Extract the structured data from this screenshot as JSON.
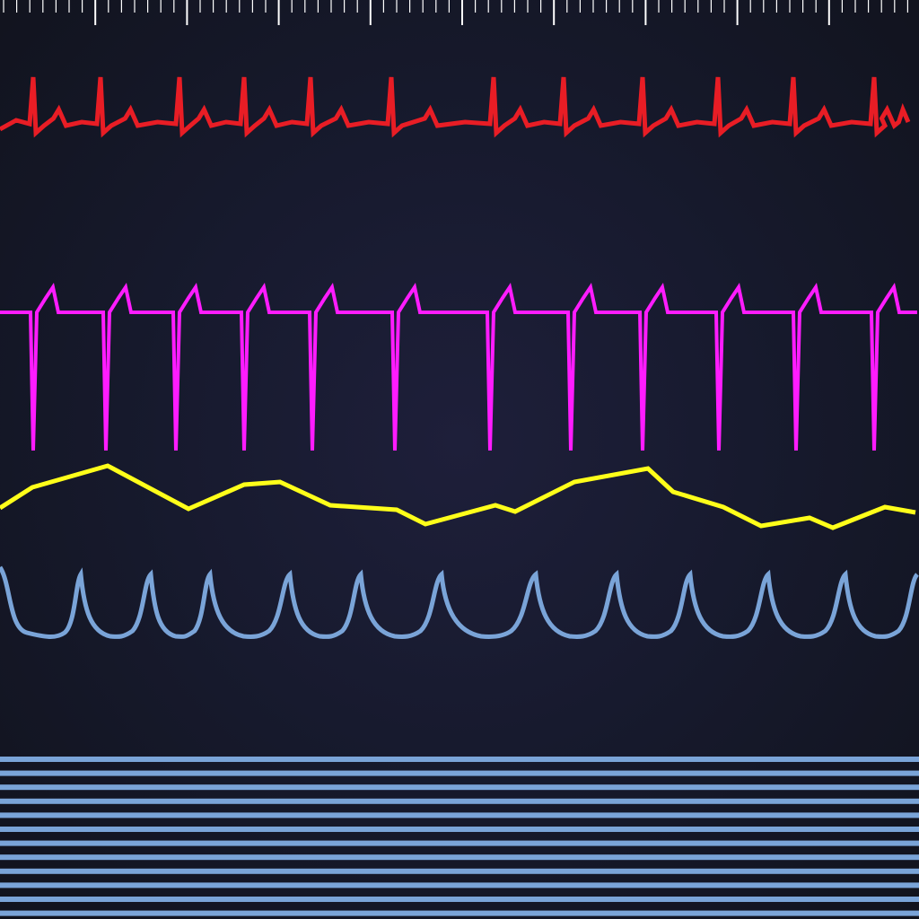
{
  "monitor": {
    "background": "#11131d",
    "ruler": {
      "color": "#ffffff",
      "tick_count": 70,
      "major_every": 7
    },
    "traces": [
      {
        "id": "ecg",
        "name": "ecg-trace",
        "color": "#e81d25",
        "stroke_width": 5
      },
      {
        "id": "pacing",
        "name": "pacing-trace",
        "color": "#ff1cff",
        "stroke_width": 4
      },
      {
        "id": "respiration",
        "name": "respiration-trace",
        "color": "#ffff1a",
        "stroke_width": 5
      },
      {
        "id": "pleth",
        "name": "pleth-trace",
        "color": "#7aa4d8",
        "stroke_width": 5
      }
    ],
    "grid": {
      "color": "#7aa4d8",
      "line_count": 12
    }
  }
}
